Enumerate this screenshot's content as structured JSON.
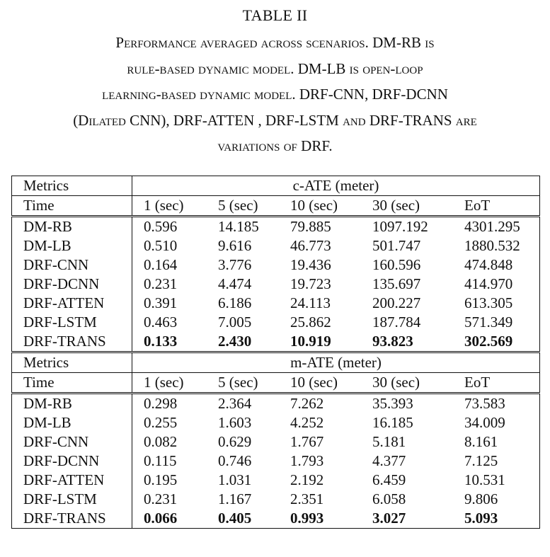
{
  "caption": {
    "label": "TABLE II",
    "lines": [
      "Performance averaged across scenarios. DM-RB is",
      "rule-based dynamic model. DM-LB is open-loop",
      "learning-based dynamic model. DRF-CNN, DRF-DCNN",
      "(Dilated CNN), DRF-ATTEN , DRF-LSTM and DRF-TRANS are",
      "variations of DRF."
    ]
  },
  "table": {
    "metrics_label": "Metrics",
    "time_label": "Time",
    "time_columns": [
      "1 (sec)",
      "5 (sec)",
      "10 (sec)",
      "30 (sec)",
      "EoT"
    ],
    "sections": [
      {
        "metric": "c-ATE (meter)",
        "rows": [
          {
            "model": "DM-RB",
            "values": [
              "0.596",
              "14.185",
              "79.885",
              "1097.192",
              "4301.295"
            ]
          },
          {
            "model": "DM-LB",
            "values": [
              "0.510",
              "9.616",
              "46.773",
              "501.747",
              "1880.532"
            ]
          },
          {
            "model": "DRF-CNN",
            "values": [
              "0.164",
              "3.776",
              "19.436",
              "160.596",
              "474.848"
            ]
          },
          {
            "model": "DRF-DCNN",
            "values": [
              "0.231",
              "4.474",
              "19.723",
              "135.697",
              "414.970"
            ]
          },
          {
            "model": "DRF-ATTEN",
            "values": [
              "0.391",
              "6.186",
              "24.113",
              "200.227",
              "613.305"
            ]
          },
          {
            "model": "DRF-LSTM",
            "values": [
              "0.463",
              "7.005",
              "25.862",
              "187.784",
              "571.349"
            ]
          },
          {
            "model": "DRF-TRANS",
            "values": [
              "0.133",
              "2.430",
              "10.919",
              "93.823",
              "302.569"
            ],
            "bold": true
          }
        ]
      },
      {
        "metric": "m-ATE (meter)",
        "rows": [
          {
            "model": "DM-RB",
            "values": [
              "0.298",
              "2.364",
              "7.262",
              "35.393",
              "73.583"
            ]
          },
          {
            "model": "DM-LB",
            "values": [
              "0.255",
              "1.603",
              "4.252",
              "16.185",
              "34.009"
            ]
          },
          {
            "model": "DRF-CNN",
            "values": [
              "0.082",
              "0.629",
              "1.767",
              "5.181",
              "8.161"
            ]
          },
          {
            "model": "DRF-DCNN",
            "values": [
              "0.115",
              "0.746",
              "1.793",
              "4.377",
              "7.125"
            ]
          },
          {
            "model": "DRF-ATTEN",
            "values": [
              "0.195",
              "1.031",
              "2.192",
              "6.459",
              "10.531"
            ]
          },
          {
            "model": "DRF-LSTM",
            "values": [
              "0.231",
              "1.167",
              "2.351",
              "6.058",
              "9.806"
            ]
          },
          {
            "model": "DRF-TRANS",
            "values": [
              "0.066",
              "0.405",
              "0.993",
              "3.027",
              "5.093"
            ],
            "bold": true
          }
        ]
      }
    ]
  }
}
